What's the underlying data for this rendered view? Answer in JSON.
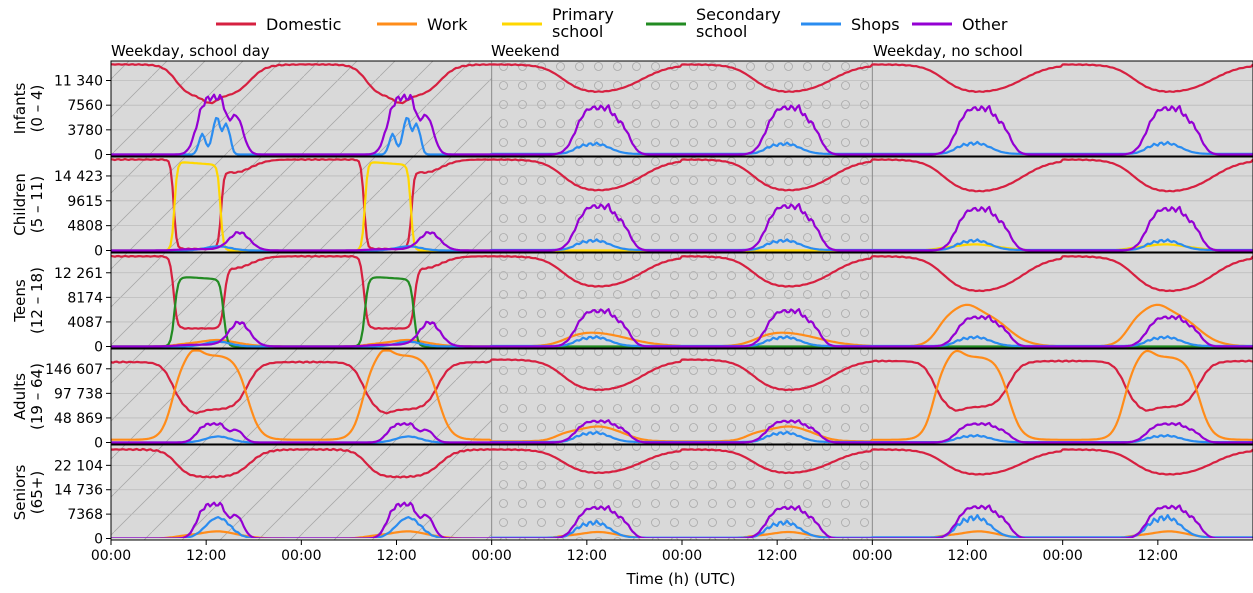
{
  "chart_data": {
    "type": "line",
    "title": "",
    "xlabel": "Time (h) (UTC)",
    "x_tick_labels": [
      "00:00",
      "12:00",
      "00:00",
      "12:00",
      "00:00",
      "12:00",
      "00:00",
      "12:00",
      "00:00",
      "12:00",
      "00:00",
      "12:00"
    ],
    "x_range_hours": [
      0,
      144
    ],
    "period_labels": [
      "Weekday, school day",
      "Weekend",
      "Weekday, no school"
    ],
    "legend_position": "top-center",
    "series_names": [
      {
        "key": "domestic",
        "lines": [
          "Domestic"
        ],
        "color": "#d62040"
      },
      {
        "key": "work",
        "lines": [
          "Work"
        ],
        "color": "#ff8c1a"
      },
      {
        "key": "primary",
        "lines": [
          "Primary",
          "school"
        ],
        "color": "#ffd700"
      },
      {
        "key": "secondary",
        "lines": [
          "Secondary",
          "school"
        ],
        "color": "#228b22"
      },
      {
        "key": "shops",
        "lines": [
          "Shops"
        ],
        "color": "#2a8cf0"
      },
      {
        "key": "other",
        "lines": [
          "Other"
        ],
        "color": "#9400d3"
      }
    ],
    "panels": [
      {
        "name": "infants",
        "label_lines": [
          "Infants",
          "(0 – 4)"
        ],
        "yticks": [
          0,
          3780,
          7560,
          11340
        ],
        "ytick_labels": [
          "0",
          "3780",
          "7560",
          "11 340"
        ],
        "ylim": [
          0,
          14100
        ],
        "series": [
          {
            "key": "domestic",
            "school_day": {
              "night": 13800,
              "day_min": 8800
            },
            "weekend": {
              "night": 13800,
              "day_min": 9300
            },
            "no_school": {
              "night": 13800,
              "day_min": 9300
            }
          },
          {
            "key": "shops",
            "school_day": {
              "peak": 5600
            },
            "weekend": {
              "peak": 1700
            },
            "no_school": {
              "peak": 1800
            }
          },
          {
            "key": "other",
            "school_day": {
              "peak": 8300
            },
            "weekend": {
              "peak": 6800
            },
            "no_school": {
              "peak": 6700
            }
          }
        ]
      },
      {
        "name": "children",
        "label_lines": [
          "Children",
          "(5 – 11)"
        ],
        "yticks": [
          0,
          4808,
          9615,
          14423
        ],
        "ytick_labels": [
          "0",
          "4808",
          "9615",
          "14 423"
        ],
        "ylim": [
          0,
          17800
        ],
        "series": [
          {
            "key": "domestic",
            "school_day": {
              "night": 17600,
              "school_hours": 300,
              "after_school": 14800
            },
            "weekend": {
              "night": 17600,
              "day_min": 11200
            },
            "no_school": {
              "night": 17600,
              "day_min": 11000
            }
          },
          {
            "key": "primary",
            "school_day": {
              "school_hours": 17200
            },
            "weekend": {
              "peak": 0
            },
            "no_school": {
              "peak": 1200
            }
          },
          {
            "key": "shops",
            "school_day": {
              "peak": 800
            },
            "weekend": {
              "peak": 2000
            },
            "no_school": {
              "peak": 2000
            }
          },
          {
            "key": "other",
            "school_day": {
              "peak": 3300
            },
            "weekend": {
              "peak": 8100
            },
            "no_school": {
              "peak": 7600
            }
          }
        ]
      },
      {
        "name": "teens",
        "label_lines": [
          "Teens",
          "(12 – 18)"
        ],
        "yticks": [
          0,
          4087,
          8174,
          12261
        ],
        "ytick_labels": [
          "0",
          "4087",
          "8174",
          "12 261"
        ],
        "ylim": [
          0,
          15300
        ],
        "series": [
          {
            "key": "domestic",
            "school_day": {
              "night": 15000,
              "school_hours": 3000,
              "after_school": 12800
            },
            "weekend": {
              "night": 15000,
              "day_min": 9600
            },
            "no_school": {
              "night": 15000,
              "day_min": 8800
            }
          },
          {
            "key": "secondary",
            "school_day": {
              "school_hours": 11500
            },
            "weekend": {
              "peak": 0
            },
            "no_school": {
              "peak": 0
            }
          },
          {
            "key": "work",
            "school_day": {
              "peak": 1100
            },
            "weekend": {
              "peak": 2800
            },
            "no_school": {
              "peak": 7200
            }
          },
          {
            "key": "shops",
            "school_day": {
              "peak": 800
            },
            "weekend": {
              "peak": 1600
            },
            "no_school": {
              "peak": 1600
            }
          },
          {
            "key": "other",
            "school_day": {
              "peak": 3800
            },
            "weekend": {
              "peak": 5600
            },
            "no_school": {
              "peak": 4600
            }
          }
        ]
      },
      {
        "name": "adults",
        "label_lines": [
          "Adults",
          "(19 – 64)"
        ],
        "yticks": [
          0,
          48869,
          97738,
          146607
        ],
        "ytick_labels": [
          "0",
          "48 869",
          "97 738",
          "146 607"
        ],
        "ylim": [
          0,
          183000
        ],
        "series": [
          {
            "key": "domestic",
            "school_day": {
              "night": 160000,
              "day_min": 57000
            },
            "weekend": {
              "night": 165000,
              "day_min": 100000
            },
            "no_school": {
              "night": 162000,
              "day_min": 62000
            }
          },
          {
            "key": "work",
            "school_day": {
              "peak": 183000
            },
            "weekend": {
              "peak": 30000
            },
            "no_school": {
              "peak": 180000
            }
          },
          {
            "key": "shops",
            "school_day": {
              "peak": 12000
            },
            "weekend": {
              "peak": 20000
            },
            "no_school": {
              "peak": 14000
            }
          },
          {
            "key": "other",
            "school_day": {
              "peak": 35000
            },
            "weekend": {
              "peak": 40000
            },
            "no_school": {
              "peak": 35000
            }
          }
        ]
      },
      {
        "name": "seniors",
        "label_lines": [
          "Seniors",
          "(65+)"
        ],
        "yticks": [
          0,
          7368,
          14736,
          22104
        ],
        "ytick_labels": [
          "0",
          "7368",
          "14 736",
          "22 104"
        ],
        "ylim": [
          0,
          27800
        ],
        "series": [
          {
            "key": "domestic",
            "school_day": {
              "night": 26900,
              "day_min": 18500
            },
            "weekend": {
              "night": 26900,
              "day_min": 19300
            },
            "no_school": {
              "night": 26900,
              "day_min": 18800
            }
          },
          {
            "key": "work",
            "school_day": {
              "peak": 2200
            },
            "weekend": {
              "peak": 2000
            },
            "no_school": {
              "peak": 2200
            }
          },
          {
            "key": "shops",
            "school_day": {
              "peak": 6300
            },
            "weekend": {
              "peak": 5000
            },
            "no_school": {
              "peak": 6600
            }
          },
          {
            "key": "other",
            "school_day": {
              "peak": 9800
            },
            "weekend": {
              "peak": 8800
            },
            "no_school": {
              "peak": 9000
            }
          }
        ]
      }
    ]
  }
}
